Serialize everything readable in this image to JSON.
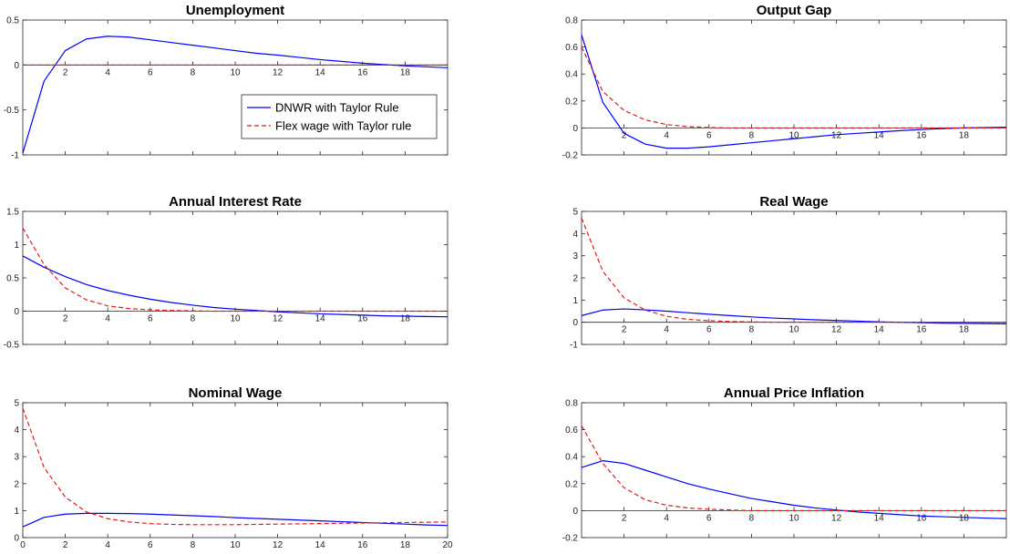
{
  "legend": {
    "placement": "inside-right",
    "entries": [
      {
        "label": "DNWR with Taylor Rule",
        "color": "#0000ff",
        "style": "solid"
      },
      {
        "label": "Flex wage with Taylor rule",
        "color": "#e31a1c",
        "style": "dashed"
      }
    ]
  },
  "chart_data": [
    {
      "type": "line",
      "title": "Unemployment",
      "xlim": [
        0,
        20
      ],
      "ylim": [
        -1,
        0.5
      ],
      "x_ticks": [
        2,
        4,
        6,
        8,
        10,
        12,
        14,
        16,
        18
      ],
      "x_tick_labels": [
        "2",
        "4",
        "6",
        "8",
        "10",
        "12",
        "14",
        "16",
        "18"
      ],
      "y_ticks": [
        -1,
        -0.5,
        0,
        0.5
      ],
      "y_tick_labels": [
        "-1",
        "-0.5",
        "0",
        "0.5"
      ],
      "x_labels_at_zero": true,
      "grid": false,
      "x": [
        0,
        1,
        2,
        3,
        4,
        5,
        6,
        7,
        8,
        9,
        10,
        11,
        12,
        13,
        14,
        15,
        16,
        17,
        18,
        19,
        20
      ],
      "series": [
        {
          "name": "DNWR with Taylor Rule",
          "color": "#0000ff",
          "dashed": false,
          "values": [
            -0.98,
            -0.18,
            0.16,
            0.29,
            0.32,
            0.31,
            0.28,
            0.25,
            0.22,
            0.19,
            0.16,
            0.13,
            0.11,
            0.085,
            0.06,
            0.04,
            0.02,
            0.005,
            -0.01,
            -0.02,
            -0.03
          ]
        },
        {
          "name": "Flex wage with Taylor rule",
          "color": "#e31a1c",
          "dashed": true,
          "values": [
            0,
            0,
            0,
            0,
            0,
            0,
            0,
            0,
            0,
            0,
            0,
            0,
            0,
            0,
            0,
            0,
            0,
            0,
            0,
            0,
            0
          ]
        }
      ]
    },
    {
      "type": "line",
      "title": "Output Gap",
      "xlim": [
        0,
        20
      ],
      "ylim": [
        -0.2,
        0.8
      ],
      "x_ticks": [
        2,
        4,
        6,
        8,
        10,
        12,
        14,
        16,
        18
      ],
      "x_tick_labels": [
        "2",
        "4",
        "6",
        "8",
        "10",
        "12",
        "14",
        "16",
        "18"
      ],
      "y_ticks": [
        -0.2,
        0,
        0.2,
        0.4,
        0.6,
        0.8
      ],
      "y_tick_labels": [
        "-0.2",
        "0",
        "0.2",
        "0.4",
        "0.6",
        "0.8"
      ],
      "x_labels_at_zero": true,
      "grid": false,
      "x": [
        0,
        1,
        2,
        3,
        4,
        5,
        6,
        7,
        8,
        9,
        10,
        11,
        12,
        13,
        14,
        15,
        16,
        17,
        18,
        19,
        20
      ],
      "series": [
        {
          "name": "DNWR with Taylor Rule",
          "color": "#0000ff",
          "dashed": false,
          "values": [
            0.69,
            0.19,
            -0.04,
            -0.12,
            -0.15,
            -0.15,
            -0.14,
            -0.125,
            -0.11,
            -0.095,
            -0.08,
            -0.065,
            -0.05,
            -0.04,
            -0.03,
            -0.02,
            -0.012,
            -0.005,
            0,
            0.003,
            0.005
          ]
        },
        {
          "name": "Flex wage with Taylor rule",
          "color": "#e31a1c",
          "dashed": true,
          "values": [
            0.6,
            0.27,
            0.13,
            0.06,
            0.025,
            0.01,
            0.003,
            0,
            0,
            0,
            0,
            0,
            0,
            0,
            0,
            0,
            0,
            0,
            0,
            0,
            0
          ]
        }
      ]
    },
    {
      "type": "line",
      "title": "Annual Interest Rate",
      "xlim": [
        0,
        20
      ],
      "ylim": [
        -0.5,
        1.5
      ],
      "x_ticks": [
        2,
        4,
        6,
        8,
        10,
        12,
        14,
        16,
        18
      ],
      "x_tick_labels": [
        "2",
        "4",
        "6",
        "8",
        "10",
        "12",
        "14",
        "16",
        "18"
      ],
      "y_ticks": [
        -0.5,
        0,
        0.5,
        1,
        1.5
      ],
      "y_tick_labels": [
        "-0.5",
        "0",
        "0.5",
        "1",
        "1.5"
      ],
      "x_labels_at_zero": true,
      "grid": false,
      "x": [
        0,
        1,
        2,
        3,
        4,
        5,
        6,
        7,
        8,
        9,
        10,
        11,
        12,
        13,
        14,
        15,
        16,
        17,
        18,
        19,
        20
      ],
      "series": [
        {
          "name": "DNWR with Taylor Rule",
          "color": "#0000ff",
          "dashed": false,
          "values": [
            0.83,
            0.66,
            0.52,
            0.4,
            0.31,
            0.24,
            0.18,
            0.13,
            0.09,
            0.055,
            0.03,
            0.01,
            -0.01,
            -0.025,
            -0.04,
            -0.05,
            -0.06,
            -0.07,
            -0.075,
            -0.08,
            -0.085
          ]
        },
        {
          "name": "Flex wage with Taylor rule",
          "color": "#e31a1c",
          "dashed": true,
          "values": [
            1.25,
            0.7,
            0.35,
            0.17,
            0.08,
            0.04,
            0.02,
            0.01,
            0.005,
            0,
            0,
            0,
            0,
            0,
            0,
            0,
            0,
            0,
            0,
            0,
            0
          ]
        }
      ]
    },
    {
      "type": "line",
      "title": "Real Wage",
      "xlim": [
        0,
        20
      ],
      "ylim": [
        -1,
        5
      ],
      "x_ticks": [
        2,
        4,
        6,
        8,
        10,
        12,
        14,
        16,
        18
      ],
      "x_tick_labels": [
        "2",
        "4",
        "6",
        "8",
        "10",
        "12",
        "14",
        "16",
        "18"
      ],
      "y_ticks": [
        -1,
        0,
        1,
        2,
        3,
        4,
        5
      ],
      "y_tick_labels": [
        "-1",
        "0",
        "1",
        "2",
        "3",
        "4",
        "5"
      ],
      "x_labels_at_zero": true,
      "grid": false,
      "x": [
        0,
        1,
        2,
        3,
        4,
        5,
        6,
        7,
        8,
        9,
        10,
        11,
        12,
        13,
        14,
        15,
        16,
        17,
        18,
        19,
        20
      ],
      "series": [
        {
          "name": "DNWR with Taylor Rule",
          "color": "#0000ff",
          "dashed": false,
          "values": [
            0.3,
            0.55,
            0.6,
            0.56,
            0.5,
            0.43,
            0.36,
            0.3,
            0.24,
            0.19,
            0.15,
            0.11,
            0.08,
            0.05,
            0.02,
            0,
            -0.02,
            -0.04,
            -0.05,
            -0.06,
            -0.07
          ]
        },
        {
          "name": "Flex wage with Taylor rule",
          "color": "#e31a1c",
          "dashed": true,
          "values": [
            4.7,
            2.3,
            1.1,
            0.55,
            0.27,
            0.13,
            0.07,
            0.035,
            0.015,
            0.005,
            0,
            0,
            0,
            0,
            0,
            0,
            0,
            0,
            0,
            0,
            0
          ]
        }
      ]
    },
    {
      "type": "line",
      "title": "Nominal Wage",
      "xlim": [
        0,
        20
      ],
      "ylim": [
        0,
        5
      ],
      "x_ticks": [
        0,
        2,
        4,
        6,
        8,
        10,
        12,
        14,
        16,
        18,
        20
      ],
      "x_tick_labels": [
        "0",
        "2",
        "4",
        "6",
        "8",
        "10",
        "12",
        "14",
        "16",
        "18",
        "20"
      ],
      "y_ticks": [
        0,
        1,
        2,
        3,
        4,
        5
      ],
      "y_tick_labels": [
        "0",
        "1",
        "2",
        "3",
        "4",
        "5"
      ],
      "x_labels_at_zero": false,
      "grid": false,
      "x": [
        0,
        1,
        2,
        3,
        4,
        5,
        6,
        7,
        8,
        9,
        10,
        11,
        12,
        13,
        14,
        15,
        16,
        17,
        18,
        19,
        20
      ],
      "series": [
        {
          "name": "DNWR with Taylor Rule",
          "color": "#0000ff",
          "dashed": false,
          "values": [
            0.4,
            0.75,
            0.87,
            0.9,
            0.9,
            0.89,
            0.87,
            0.84,
            0.81,
            0.78,
            0.74,
            0.71,
            0.68,
            0.65,
            0.62,
            0.59,
            0.56,
            0.53,
            0.5,
            0.47,
            0.45
          ]
        },
        {
          "name": "Flex wage with Taylor rule",
          "color": "#e31a1c",
          "dashed": true,
          "values": [
            4.8,
            2.6,
            1.5,
            0.95,
            0.7,
            0.58,
            0.52,
            0.49,
            0.48,
            0.48,
            0.48,
            0.49,
            0.5,
            0.51,
            0.52,
            0.53,
            0.54,
            0.55,
            0.56,
            0.57,
            0.58
          ]
        }
      ]
    },
    {
      "type": "line",
      "title": "Annual Price Inflation",
      "xlim": [
        0,
        20
      ],
      "ylim": [
        -0.2,
        0.8
      ],
      "x_ticks": [
        2,
        4,
        6,
        8,
        10,
        12,
        14,
        16,
        18
      ],
      "x_tick_labels": [
        "2",
        "4",
        "6",
        "8",
        "10",
        "12",
        "14",
        "16",
        "18"
      ],
      "y_ticks": [
        -0.2,
        0,
        0.2,
        0.4,
        0.6,
        0.8
      ],
      "y_tick_labels": [
        "-0.2",
        "0",
        "0.2",
        "0.4",
        "0.6",
        "0.8"
      ],
      "x_labels_at_zero": true,
      "grid": false,
      "x": [
        0,
        1,
        2,
        3,
        4,
        5,
        6,
        7,
        8,
        9,
        10,
        11,
        12,
        13,
        14,
        15,
        16,
        17,
        18,
        19,
        20
      ],
      "series": [
        {
          "name": "DNWR with Taylor Rule",
          "color": "#0000ff",
          "dashed": false,
          "values": [
            0.32,
            0.37,
            0.35,
            0.3,
            0.25,
            0.2,
            0.16,
            0.125,
            0.09,
            0.065,
            0.04,
            0.02,
            0.005,
            -0.01,
            -0.02,
            -0.03,
            -0.04,
            -0.045,
            -0.05,
            -0.055,
            -0.06
          ]
        },
        {
          "name": "Flex wage with Taylor rule",
          "color": "#e31a1c",
          "dashed": true,
          "values": [
            0.63,
            0.35,
            0.17,
            0.08,
            0.04,
            0.02,
            0.01,
            0.005,
            0,
            0,
            0,
            0,
            0,
            0,
            0,
            0,
            0,
            0,
            0,
            0,
            0
          ]
        }
      ]
    }
  ]
}
